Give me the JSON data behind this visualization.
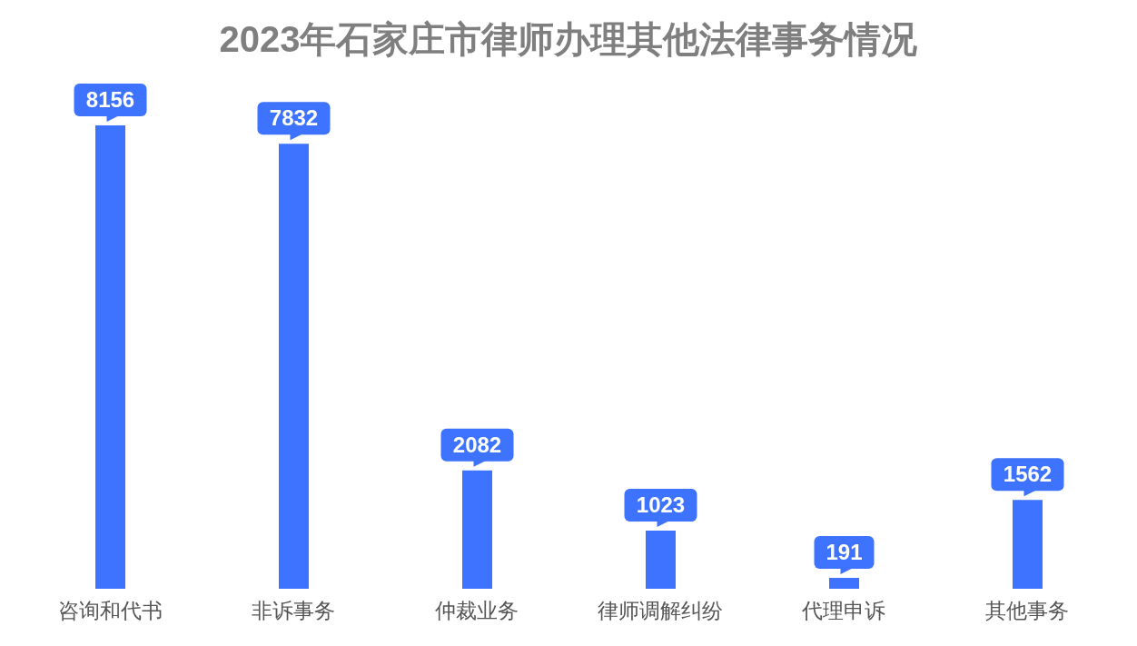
{
  "chart_data": {
    "type": "bar",
    "title": "2023年石家庄市律师办理其他法律事务情况",
    "categories": [
      "咨询和代书",
      "非诉事务",
      "仲裁业务",
      "律师调解纠纷",
      "代理申诉",
      "其他事务"
    ],
    "values": [
      8156,
      7832,
      2082,
      1023,
      191,
      1562
    ],
    "color": "#3d73ff",
    "data_labels": true,
    "grid": false,
    "legend": false
  }
}
